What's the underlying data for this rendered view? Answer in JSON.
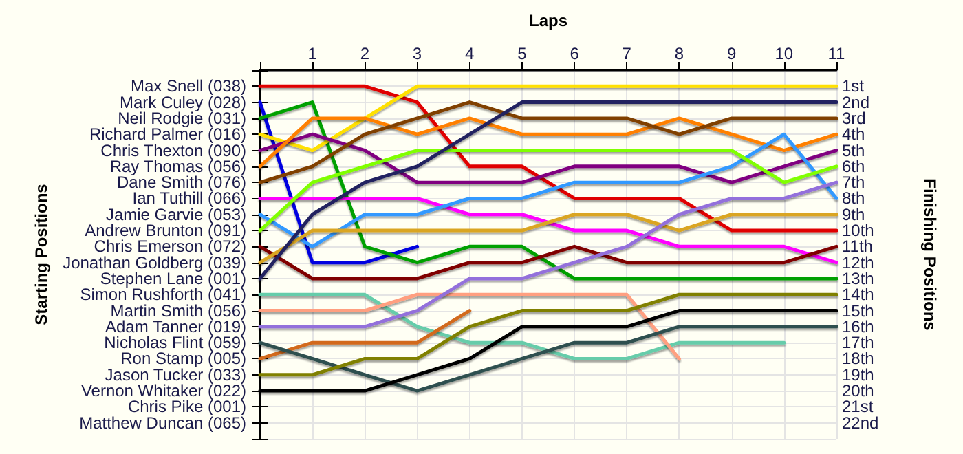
{
  "chart_data": {
    "type": "line",
    "xlabel": "Laps",
    "ylabel": "Finishing Positions",
    "annotations": [
      "Starting Positions",
      "Max Snell (038)",
      "Mark Culey (028)",
      "Neil Rodgie (031)",
      "Richard Palmer (016)",
      "Chris Thexton (090)",
      "Ray Thomas (056)",
      "Dane Smith (076)",
      "Ian Tuthill (066)",
      "Jamie Garvie (053)",
      "Andrew Brunton (091)",
      "Chris Emerson (072)",
      "Jonathan Goldberg (039)",
      "Stephen Lane (001)",
      "Simon Rushforth (041)",
      "Martin Smith (056)",
      "Adam Tanner (019)",
      "Nicholas Flint (059)",
      "Ron Stamp (005)",
      "Jason Tucker (033)",
      "Vernon Whitaker (022)",
      "Chris Pike (001)",
      "Matthew Duncan (065)"
    ],
    "x": [
      0,
      1,
      2,
      3,
      4,
      5,
      6,
      7,
      8,
      9,
      10,
      11
    ],
    "xlim": [
      0,
      11
    ],
    "xticks": [
      {
        "value": 0,
        "label": null
      },
      1,
      2,
      3,
      4,
      5,
      6,
      7,
      8,
      9,
      10,
      11
    ],
    "ylim": [
      23,
      0
    ],
    "yticks": [
      {
        "value": 1,
        "label": "1st"
      },
      {
        "value": 2,
        "label": "2nd"
      },
      {
        "value": 3,
        "label": "3rd"
      },
      {
        "value": 4,
        "label": "4th"
      },
      {
        "value": 5,
        "label": "5th"
      },
      {
        "value": 6,
        "label": "6th"
      },
      {
        "value": 7,
        "label": "7th"
      },
      {
        "value": 8,
        "label": "8th"
      },
      {
        "value": 9,
        "label": "9th"
      },
      {
        "value": 10,
        "label": "10th"
      },
      {
        "value": 11,
        "label": "11th"
      },
      {
        "value": 12,
        "label": "12th"
      },
      {
        "value": 13,
        "label": "13th"
      },
      {
        "value": 14,
        "label": "14th"
      },
      {
        "value": 15,
        "label": "15th"
      },
      {
        "value": 16,
        "label": "16th"
      },
      {
        "value": 17,
        "label": "17th"
      },
      {
        "value": 18,
        "label": "18th"
      },
      {
        "value": 19,
        "label": "19th"
      },
      {
        "value": 20,
        "label": "20th"
      },
      {
        "value": 21,
        "label": "21st"
      },
      {
        "value": 22,
        "label": "22nd"
      },
      {
        "value": 23,
        "label": null
      }
    ],
    "grid": true,
    "marker": "none",
    "line_style": "solid",
    "series": [
      {
        "color": "#e00000",
        "values": [
          1,
          1,
          1,
          2,
          6,
          6,
          8,
          8,
          8,
          10,
          10,
          10
        ]
      },
      {
        "color": "#0000e0",
        "values": [
          2,
          12,
          12,
          11,
          null,
          null,
          null,
          null,
          null,
          null,
          null,
          null
        ]
      },
      {
        "color": "#00a000",
        "values": [
          3,
          2,
          11,
          12,
          11,
          11,
          13,
          13,
          13,
          13,
          13,
          13
        ]
      },
      {
        "color": "#ffe000",
        "values": [
          4,
          5,
          3,
          1,
          1,
          1,
          1,
          1,
          1,
          1,
          1,
          1
        ]
      },
      {
        "color": "#800080",
        "values": [
          5,
          4,
          5,
          7,
          7,
          7,
          6,
          6,
          6,
          7,
          6,
          5
        ]
      },
      {
        "color": "#ff8000",
        "values": [
          6,
          3,
          3,
          4,
          3,
          4,
          4,
          4,
          3,
          4,
          5,
          4
        ]
      },
      {
        "color": "#804000",
        "values": [
          7,
          6,
          4,
          3,
          2,
          3,
          3,
          3,
          4,
          3,
          3,
          3
        ]
      },
      {
        "color": "#ff00ff",
        "values": [
          8,
          8,
          8,
          8,
          9,
          9,
          10,
          10,
          11,
          11,
          11,
          12
        ]
      },
      {
        "color": "#3399ff",
        "values": [
          9,
          11,
          9,
          9,
          8,
          8,
          7,
          7,
          7,
          6,
          4,
          8
        ]
      },
      {
        "color": "#80ff00",
        "values": [
          10,
          7,
          6,
          5,
          5,
          5,
          5,
          5,
          5,
          5,
          7,
          6
        ]
      },
      {
        "color": "#800000",
        "values": [
          11,
          13,
          13,
          13,
          12,
          12,
          11,
          12,
          12,
          12,
          12,
          11
        ]
      },
      {
        "color": "#daa520",
        "values": [
          12,
          10,
          10,
          10,
          10,
          10,
          9,
          9,
          10,
          9,
          9,
          9
        ]
      },
      {
        "color": "#202060",
        "values": [
          13,
          9,
          7,
          6,
          4,
          2,
          2,
          2,
          2,
          2,
          2,
          2
        ]
      },
      {
        "color": "#66ccaa",
        "values": [
          14,
          14,
          14,
          16,
          17,
          17,
          18,
          18,
          17,
          17,
          17,
          null
        ]
      },
      {
        "color": "#ff9f80",
        "values": [
          15,
          15,
          15,
          14,
          14,
          14,
          14,
          14,
          18,
          null,
          null,
          null
        ]
      },
      {
        "color": "#9370db",
        "values": [
          16,
          16,
          16,
          15,
          13,
          13,
          12,
          11,
          9,
          8,
          8,
          7
        ]
      },
      {
        "color": "#d2691e",
        "values": [
          18,
          17,
          17,
          17,
          15,
          null,
          null,
          null,
          null,
          null,
          null,
          null
        ]
      },
      {
        "color": "#2f4f4f",
        "values": [
          17,
          18,
          19,
          20,
          19,
          18,
          17,
          17,
          16,
          16,
          16,
          16
        ]
      },
      {
        "color": "#808000",
        "values": [
          19,
          19,
          18,
          18,
          16,
          15,
          15,
          15,
          14,
          14,
          14,
          14
        ]
      },
      {
        "color": "#000000",
        "values": [
          20,
          20,
          20,
          19,
          18,
          16,
          16,
          16,
          15,
          15,
          15,
          15
        ]
      }
    ]
  }
}
